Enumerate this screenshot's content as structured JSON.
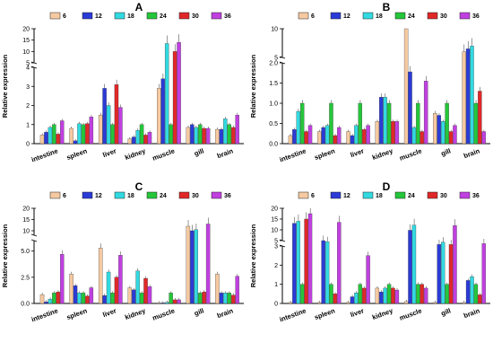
{
  "legend": {
    "series": [
      "6",
      "12",
      "18",
      "24",
      "30",
      "36"
    ],
    "colors": [
      "#F5C9A1",
      "#2B3BD6",
      "#33D9E0",
      "#25C63A",
      "#E02828",
      "#C040E0"
    ]
  },
  "chart_data": [
    {
      "type": "bar",
      "panel_label": "A",
      "ylabel": "Relative expression",
      "categories": [
        "intestine",
        "spleen",
        "liver",
        "kidney",
        "muscle",
        "gill",
        "brain"
      ],
      "axis_break": {
        "lower_ylim": [
          0,
          4
        ],
        "upper_ylim": [
          5,
          20
        ],
        "lower_ticks": [
          0,
          1,
          2,
          3,
          4
        ],
        "upper_ticks": [
          5,
          10,
          15,
          20
        ]
      },
      "series": [
        {
          "name": "6",
          "values": [
            0.45,
            0.8,
            1.5,
            0.25,
            2.9,
            0.85,
            0.75
          ]
        },
        {
          "name": "12",
          "values": [
            0.6,
            0.15,
            2.9,
            0.35,
            3.4,
            1.0,
            0.75
          ]
        },
        {
          "name": "18",
          "values": [
            0.85,
            1.05,
            2.0,
            0.7,
            13.5,
            0.85,
            1.3
          ]
        },
        {
          "name": "24",
          "values": [
            1.0,
            1.0,
            1.0,
            1.0,
            1.0,
            1.0,
            1.0
          ]
        },
        {
          "name": "30",
          "values": [
            0.5,
            1.05,
            3.1,
            0.45,
            10.0,
            0.8,
            0.85
          ]
        },
        {
          "name": "36",
          "values": [
            1.2,
            1.4,
            1.9,
            0.6,
            14.0,
            0.8,
            1.5
          ]
        }
      ]
    },
    {
      "type": "bar",
      "panel_label": "B",
      "ylabel": "Relative expression",
      "categories": [
        "intestine",
        "spleen",
        "liver",
        "kidney",
        "muscle",
        "gill",
        "brain"
      ],
      "axis_break": {
        "lower_ylim": [
          0,
          2
        ],
        "upper_ylim": [
          5,
          10
        ],
        "lower_ticks": [
          0.0,
          0.5,
          1.0,
          1.5,
          2.0
        ],
        "upper_ticks": [
          5,
          10
        ]
      },
      "series": [
        {
          "name": "6",
          "values": [
            0.2,
            0.3,
            0.3,
            0.55,
            12.0,
            0.75,
            6.0
          ]
        },
        {
          "name": "12",
          "values": [
            0.35,
            0.4,
            0.2,
            1.15,
            2.5,
            0.7,
            6.5
          ]
        },
        {
          "name": "18",
          "values": [
            0.8,
            0.45,
            0.45,
            1.15,
            0.4,
            0.55,
            7.0
          ]
        },
        {
          "name": "24",
          "values": [
            1.0,
            1.0,
            1.0,
            1.0,
            1.0,
            1.0,
            1.0
          ]
        },
        {
          "name": "30",
          "values": [
            0.3,
            0.2,
            0.35,
            0.55,
            0.3,
            0.3,
            1.3
          ]
        },
        {
          "name": "36",
          "values": [
            0.45,
            0.4,
            0.45,
            0.55,
            1.55,
            0.45,
            0.3
          ]
        }
      ]
    },
    {
      "type": "bar",
      "panel_label": "C",
      "ylabel": "Relative expression",
      "categories": [
        "intestine",
        "spleen",
        "liver",
        "kidney",
        "muscle",
        "gill",
        "brain"
      ],
      "axis_break": {
        "lower_ylim": [
          0,
          6
        ],
        "upper_ylim": [
          8,
          20
        ],
        "lower_ticks": [
          0.0,
          2.5,
          5.0
        ],
        "upper_ticks": [
          10,
          15,
          20
        ]
      },
      "series": [
        {
          "name": "6",
          "values": [
            0.85,
            2.8,
            5.3,
            1.5,
            0.05,
            12.0,
            2.8
          ]
        },
        {
          "name": "12",
          "values": [
            0.15,
            1.7,
            0.75,
            1.3,
            0.05,
            10.0,
            1.0
          ]
        },
        {
          "name": "18",
          "values": [
            0.4,
            1.0,
            3.0,
            3.1,
            0.1,
            10.5,
            1.0
          ]
        },
        {
          "name": "24",
          "values": [
            1.0,
            1.0,
            1.0,
            1.0,
            1.0,
            1.0,
            1.0
          ]
        },
        {
          "name": "30",
          "values": [
            1.1,
            0.7,
            2.5,
            2.4,
            0.35,
            1.1,
            0.8
          ]
        },
        {
          "name": "36",
          "values": [
            4.7,
            1.5,
            4.6,
            1.6,
            0.35,
            13.0,
            2.6
          ]
        }
      ]
    },
    {
      "type": "bar",
      "panel_label": "D",
      "ylabel": "Relative expression",
      "categories": [
        "intestine",
        "spleen",
        "liver",
        "kidney",
        "muscle",
        "gill",
        "brain"
      ],
      "axis_break": {
        "lower_ylim": [
          0,
          3
        ],
        "upper_ylim": [
          5,
          20
        ],
        "lower_ticks": [
          0,
          1,
          2,
          3
        ],
        "upper_ticks": [
          5,
          10,
          15,
          20
        ]
      },
      "series": [
        {
          "name": "6",
          "values": [
            0.05,
            0.05,
            0.05,
            0.8,
            0.1,
            0.05,
            0.05
          ]
        },
        {
          "name": "12",
          "values": [
            13.0,
            5.0,
            0.35,
            0.6,
            9.8,
            3.2,
            1.2
          ]
        },
        {
          "name": "18",
          "values": [
            14.0,
            4.5,
            0.55,
            0.8,
            12.2,
            4.3,
            1.4
          ]
        },
        {
          "name": "24",
          "values": [
            1.0,
            1.0,
            1.0,
            1.0,
            1.0,
            1.0,
            1.0
          ]
        },
        {
          "name": "30",
          "values": [
            15.0,
            0.5,
            0.8,
            0.8,
            1.0,
            3.2,
            0.45
          ]
        },
        {
          "name": "36",
          "values": [
            17.5,
            13.5,
            2.5,
            0.7,
            0.8,
            12.0,
            3.6
          ]
        }
      ]
    }
  ]
}
